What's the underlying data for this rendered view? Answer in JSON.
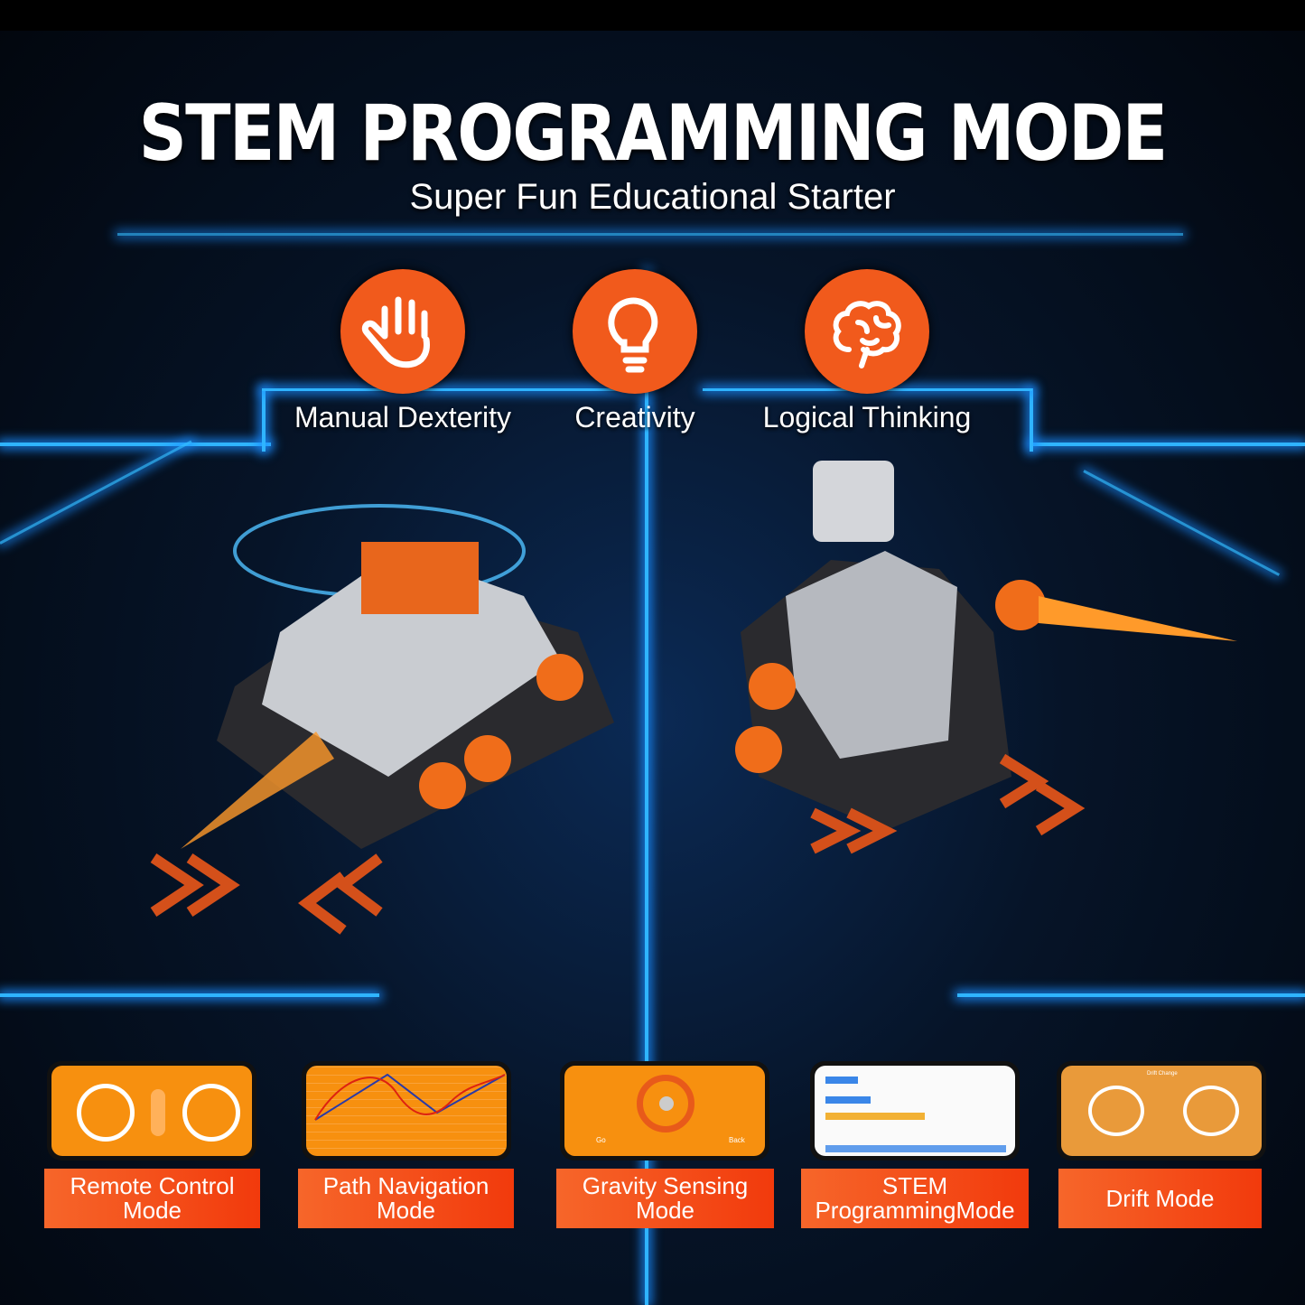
{
  "header": {
    "title": "STEM PROGRAMMING MODE",
    "subtitle": "Super Fun Educational Starter"
  },
  "skills": [
    {
      "label": "Manual Dexterity",
      "icon": "hand-icon"
    },
    {
      "label": "Creativity",
      "icon": "lightbulb-icon"
    },
    {
      "label": "Logical Thinking",
      "icon": "brain-icon"
    }
  ],
  "modes": [
    {
      "label": "Remote Control Mode"
    },
    {
      "label": "Path Navigation Mode"
    },
    {
      "label": "Gravity Sensing Mode",
      "screen_left": "Go",
      "screen_right": "Back"
    },
    {
      "label": "STEM ProgrammingMode"
    },
    {
      "label": "Drift Mode",
      "screen_top": "Drift Change"
    }
  ],
  "colors": {
    "accent": "#f15a1c",
    "glow": "#2fb4ff",
    "screen": "#f7900f"
  }
}
